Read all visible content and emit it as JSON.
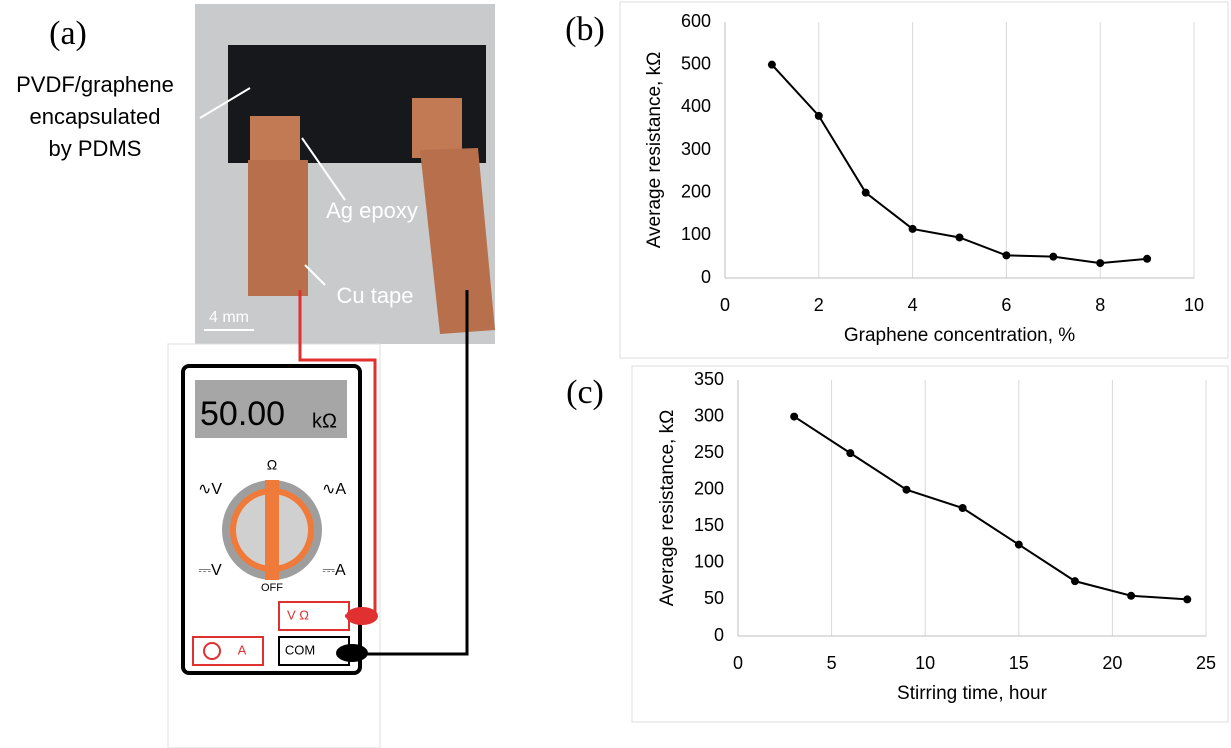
{
  "panel_a": {
    "panel": "(a)",
    "sample_label": [
      "PVDF/graphene",
      "encapsulated",
      "by PDMS"
    ],
    "electrode_label": "Ag epoxy",
    "tape_label": "Cu tape",
    "scale_bar": "4 mm",
    "display_value": "50.00",
    "display_unit": "kΩ",
    "dial_top": "Ω",
    "dial_ac_v": "∿V",
    "dial_ac_a": "∿A",
    "dial_dc_v": "⎓V",
    "dial_dc_a": "⎓A",
    "dial_off": "OFF",
    "port_vo": "V Ω",
    "port_a": "A",
    "port_com": "COM"
  },
  "chart_data": [
    {
      "type": "line",
      "panel": "(b)",
      "xlabel": "Graphene concentration, %",
      "ylabel": "Average resistance,  kΩ",
      "x": [
        1,
        2,
        3,
        4,
        5,
        6,
        7,
        8,
        9
      ],
      "values": [
        500,
        380,
        200,
        115,
        95,
        53,
        50,
        35,
        45
      ],
      "color": "#000000",
      "xlim": [
        0,
        10
      ],
      "xticks": [
        0,
        2,
        4,
        6,
        8,
        10
      ],
      "ylim": [
        0,
        600
      ],
      "yticks": [
        0,
        100,
        200,
        300,
        400,
        500,
        600
      ],
      "grid": "x"
    },
    {
      "type": "line",
      "panel": "(c)",
      "xlabel": "Stirring time, hour",
      "ylabel": "Average resistance,  kΩ",
      "x": [
        3,
        6,
        9,
        12,
        15,
        18,
        21,
        24
      ],
      "values": [
        300,
        250,
        200,
        175,
        125,
        75,
        55,
        50
      ],
      "color": "#000000",
      "xlim": [
        0,
        25
      ],
      "xticks": [
        0,
        5,
        10,
        15,
        20,
        25
      ],
      "ylim": [
        0,
        350
      ],
      "yticks": [
        0,
        50,
        100,
        150,
        200,
        250,
        300,
        350
      ],
      "grid": "x"
    }
  ]
}
